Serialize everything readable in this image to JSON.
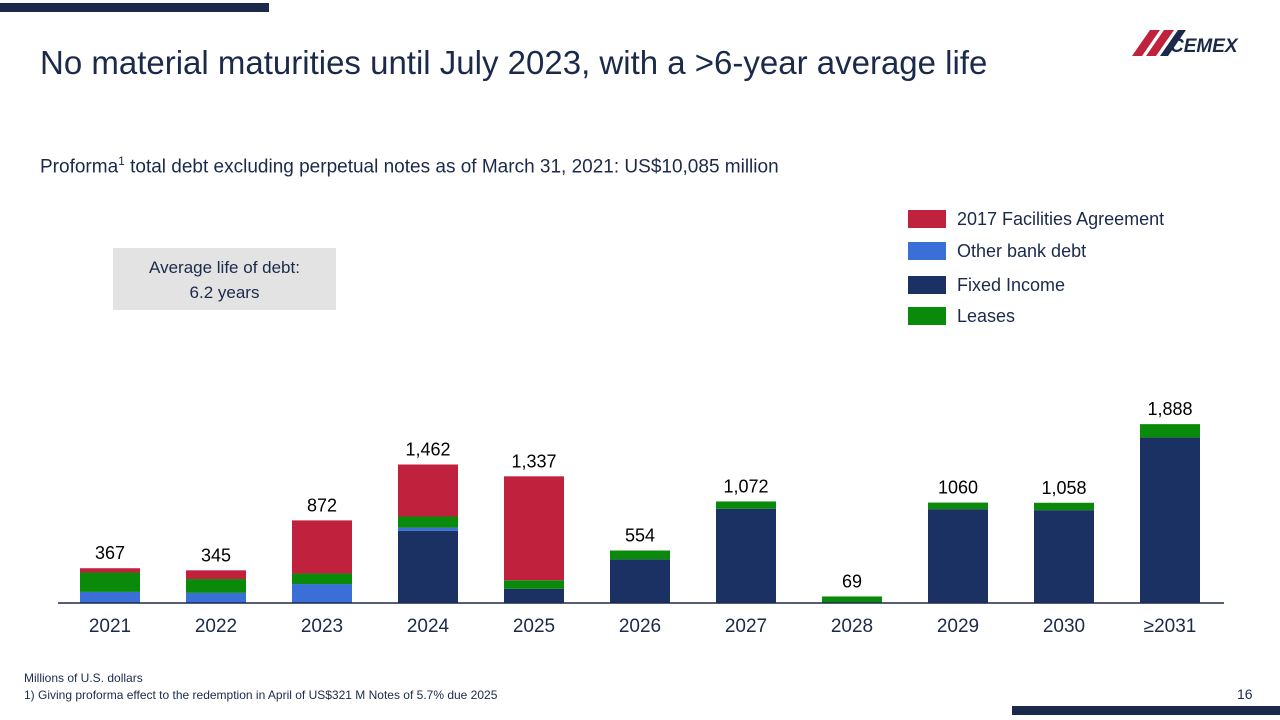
{
  "slide": {
    "title": "No material maturities until July 2023, with a >6-year average life",
    "subtitle_main": "Proforma",
    "subtitle_sup": "1",
    "subtitle_rest": " total debt excluding perpetual notes as of March 31, 2021: US$10,085 million",
    "logo_text": "CEMEX",
    "avg_box": {
      "line1": "Average life of debt:",
      "line2": "6.2 years"
    },
    "footnote_units": "Millions of U.S. dollars",
    "footnote_1": "1) Giving proforma effect to the redemption in April of US$321 M Notes of 5.7% due 2025",
    "page_number": "16"
  },
  "colors": {
    "facilities": "#c0223d",
    "other_bank": "#3a6fd8",
    "fixed_income": "#1b3163",
    "leases": "#0a8a0a",
    "navy": "#1b2a4a"
  },
  "chart_data": {
    "type": "bar",
    "stacked": true,
    "categories": [
      "2021",
      "2022",
      "2023",
      "2024",
      "2025",
      "2026",
      "2027",
      "2028",
      "2029",
      "2030",
      "≥2031"
    ],
    "totals": [
      "367",
      "345",
      "872",
      "1,462",
      "1,337",
      "554",
      "1,072",
      "69",
      "1060",
      "1,058",
      "1,888"
    ],
    "series": [
      {
        "name": "Fixed Income",
        "color": "#1b3163",
        "values": [
          0,
          0,
          0,
          763,
          150,
          461,
          995,
          0,
          990,
          980,
          1746
        ]
      },
      {
        "name": "Other bank debt",
        "color": "#3a6fd8",
        "values": [
          117,
          107,
          200,
          33,
          0,
          0,
          0,
          0,
          0,
          0,
          0
        ]
      },
      {
        "name": "Leases",
        "color": "#0a8a0a",
        "values": [
          205,
          146,
          111,
          117,
          90,
          93,
          77,
          69,
          70,
          78,
          142
        ]
      },
      {
        "name": "2017 Facilities Agreement",
        "color": "#c0223d",
        "values": [
          45,
          92,
          561,
          549,
          1097,
          0,
          0,
          0,
          0,
          0,
          0
        ]
      }
    ],
    "legend_order": [
      "2017 Facilities Agreement",
      "Other bank debt",
      "Fixed Income",
      "Leases"
    ],
    "ylim": [
      0,
      1900
    ],
    "legend_position": "top-right",
    "grid": false
  }
}
